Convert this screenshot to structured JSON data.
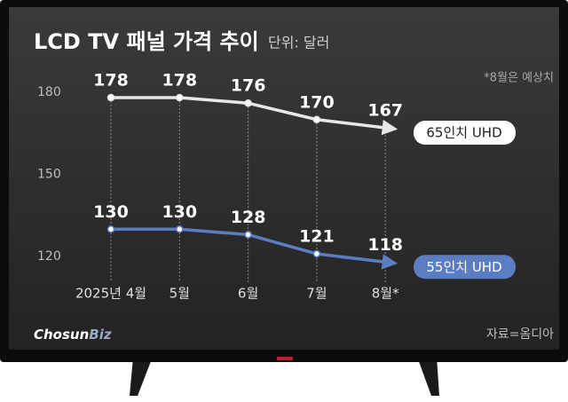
{
  "chart_data": {
    "type": "line",
    "title": "LCD TV 패널 가격 추이",
    "subtitle": "단위: 달러",
    "note": "*8월은 예상치",
    "source": "자료=옴디아",
    "logo": {
      "main": "Chosun",
      "accent": "Biz"
    },
    "categories": [
      "2025년 4월",
      "5월",
      "6월",
      "7월",
      "8월*"
    ],
    "series": [
      {
        "name": "65인치 UHD",
        "color": "#e8e8e8",
        "values": [
          178,
          178,
          176,
          170,
          167
        ]
      },
      {
        "name": "55인치 UHD",
        "color": "#5b7dc2",
        "values": [
          130,
          130,
          128,
          121,
          118
        ]
      }
    ],
    "ylim": [
      110,
      190
    ],
    "yticks": [
      120,
      150,
      180
    ],
    "grid": false
  }
}
